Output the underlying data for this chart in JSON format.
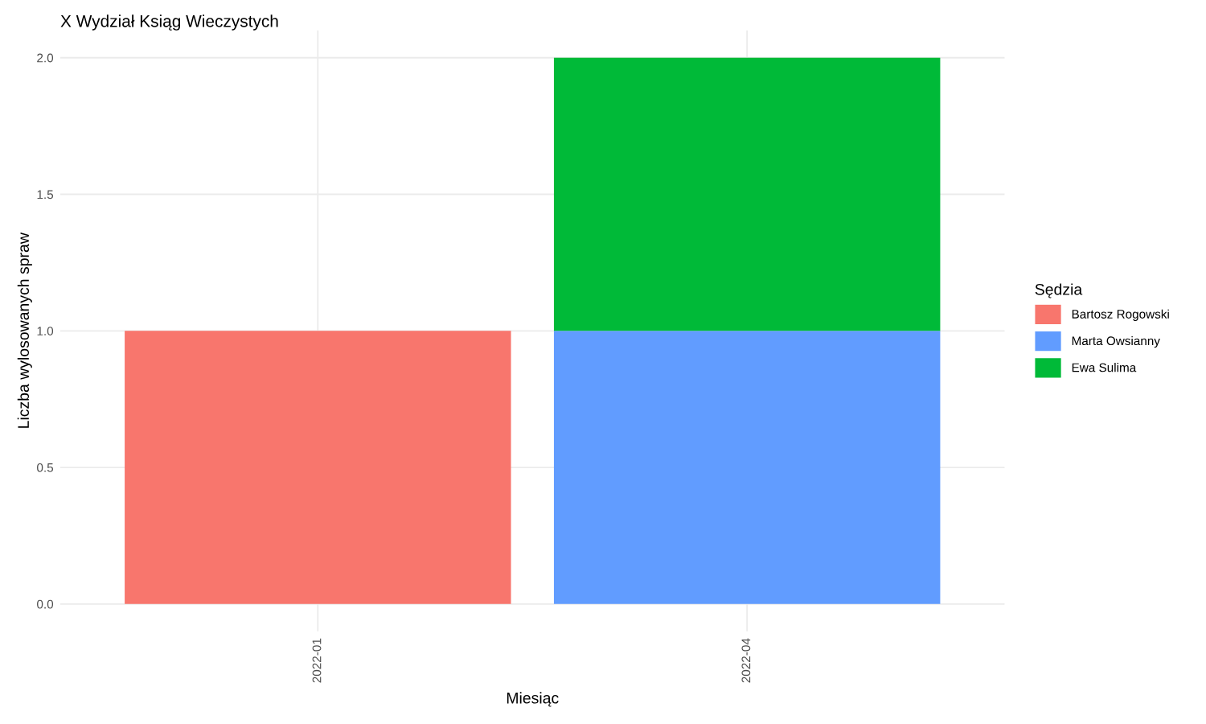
{
  "chart_data": {
    "type": "bar",
    "stacked": true,
    "title": "X Wydział Ksiąg Wieczystych",
    "xlabel": "Miesiąc",
    "ylabel": "Liczba wylosowanych spraw",
    "legend_title": "Sędzia",
    "legend": "right",
    "grid": true,
    "categories": [
      "2022-01",
      "2022-04"
    ],
    "series": [
      {
        "name": "Bartosz Rogowski",
        "color": "#f8766d",
        "values": [
          1,
          null
        ]
      },
      {
        "name": "Marta Owsianny",
        "color": "#619cff",
        "values": [
          null,
          1
        ]
      },
      {
        "name": "Ewa Sulima",
        "color": "#00ba38",
        "values": [
          null,
          1
        ]
      }
    ],
    "ylim": [
      -0.1,
      2.1
    ],
    "yticks": [
      {
        "value": 0,
        "label": "0.0"
      },
      {
        "value": 0.5,
        "label": "0.5"
      },
      {
        "value": 1,
        "label": "1.0"
      },
      {
        "value": 1.5,
        "label": "1.5"
      },
      {
        "value": 2,
        "label": "2.0"
      }
    ]
  }
}
